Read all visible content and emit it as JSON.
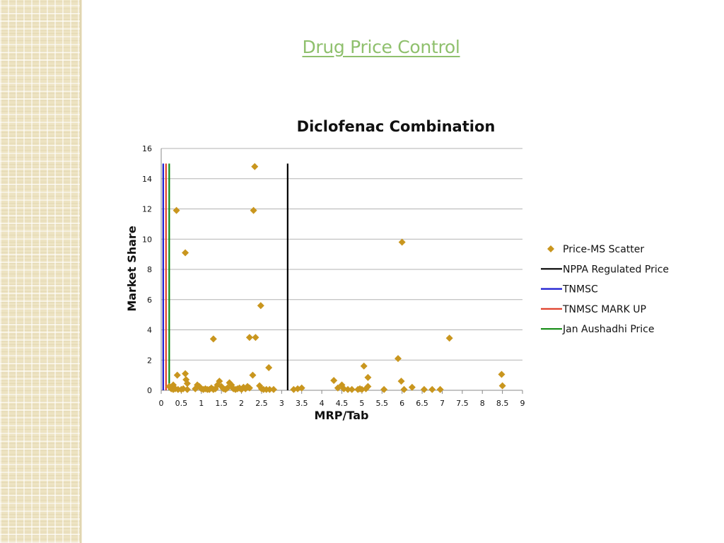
{
  "slide": {
    "title": "Drug Price Control"
  },
  "colors": {
    "scatter": "#c9961e",
    "nppa": "#000000",
    "tnmsc": "#1a1ad0",
    "tnmsc_markup": "#e0412c",
    "jan_aushadhi": "#118a11",
    "title": "#8fc06d"
  },
  "chart_data": {
    "type": "scatter",
    "title": "Diclofenac Combination",
    "xlabel": "MRP/Tab",
    "ylabel": "Market Share",
    "xlim": [
      0,
      9
    ],
    "ylim": [
      0,
      16
    ],
    "xticks": [
      0,
      0.5,
      1,
      1.5,
      2,
      2.5,
      3,
      3.5,
      4,
      4.5,
      5,
      5.5,
      6,
      6.5,
      7,
      7.5,
      8,
      8.5,
      9
    ],
    "xtick_labels": [
      "0",
      "0.5",
      "1",
      "1.5",
      "2",
      "2.5",
      "3",
      "3.5",
      "4",
      "4.5",
      "5",
      "5.5",
      "6",
      "6.5",
      "7",
      "7.5",
      "8",
      "8.5",
      "9"
    ],
    "yticks": [
      0,
      2,
      4,
      6,
      8,
      10,
      12,
      14,
      16
    ],
    "ytick_labels": [
      "0",
      "2",
      "4",
      "6",
      "8",
      "10",
      "12",
      "14",
      "16"
    ],
    "grid": true,
    "legend_position": "right",
    "series": [
      {
        "name": "Price-MS Scatter",
        "kind": "scatter",
        "color": "#c9961e",
        "points": [
          [
            0.38,
            11.9
          ],
          [
            0.6,
            9.1
          ],
          [
            2.33,
            14.8
          ],
          [
            2.3,
            11.9
          ],
          [
            2.48,
            5.6
          ],
          [
            2.2,
            3.5
          ],
          [
            2.35,
            3.5
          ],
          [
            1.3,
            3.4
          ],
          [
            2.68,
            1.5
          ],
          [
            2.28,
            1.0
          ],
          [
            0.4,
            1.0
          ],
          [
            0.6,
            1.1
          ],
          [
            0.62,
            0.7
          ],
          [
            0.65,
            0.45
          ],
          [
            0.3,
            0.35
          ],
          [
            0.2,
            0.25
          ],
          [
            0.25,
            0.1
          ],
          [
            0.3,
            0.05
          ],
          [
            0.35,
            0.1
          ],
          [
            0.42,
            0.05
          ],
          [
            0.5,
            0.05
          ],
          [
            0.55,
            0.1
          ],
          [
            0.65,
            0.05
          ],
          [
            0.85,
            0.1
          ],
          [
            0.9,
            0.35
          ],
          [
            0.95,
            0.25
          ],
          [
            1.0,
            0.1
          ],
          [
            1.05,
            0.05
          ],
          [
            1.1,
            0.1
          ],
          [
            1.15,
            0.05
          ],
          [
            1.2,
            0.05
          ],
          [
            1.25,
            0.15
          ],
          [
            1.3,
            0.05
          ],
          [
            1.35,
            0.1
          ],
          [
            1.4,
            0.35
          ],
          [
            1.45,
            0.6
          ],
          [
            1.5,
            0.25
          ],
          [
            1.55,
            0.1
          ],
          [
            1.6,
            0.05
          ],
          [
            1.65,
            0.15
          ],
          [
            1.7,
            0.5
          ],
          [
            1.75,
            0.35
          ],
          [
            1.8,
            0.1
          ],
          [
            1.85,
            0.05
          ],
          [
            1.9,
            0.1
          ],
          [
            1.95,
            0.15
          ],
          [
            2.0,
            0.05
          ],
          [
            2.05,
            0.2
          ],
          [
            2.1,
            0.1
          ],
          [
            2.15,
            0.25
          ],
          [
            2.2,
            0.15
          ],
          [
            2.45,
            0.3
          ],
          [
            2.5,
            0.1
          ],
          [
            2.55,
            0.05
          ],
          [
            2.62,
            0.05
          ],
          [
            2.7,
            0.05
          ],
          [
            2.8,
            0.05
          ],
          [
            3.3,
            0.05
          ],
          [
            3.4,
            0.1
          ],
          [
            3.5,
            0.15
          ],
          [
            4.3,
            0.65
          ],
          [
            4.4,
            0.15
          ],
          [
            4.5,
            0.35
          ],
          [
            4.55,
            0.1
          ],
          [
            4.65,
            0.05
          ],
          [
            4.75,
            0.05
          ],
          [
            4.9,
            0.05
          ],
          [
            4.95,
            0.1
          ],
          [
            5.0,
            0.05
          ],
          [
            5.05,
            1.6
          ],
          [
            5.1,
            0.1
          ],
          [
            5.15,
            0.85
          ],
          [
            5.15,
            0.25
          ],
          [
            5.55,
            0.05
          ],
          [
            5.9,
            2.1
          ],
          [
            6.0,
            9.8
          ],
          [
            5.98,
            0.6
          ],
          [
            6.05,
            0.05
          ],
          [
            6.25,
            0.2
          ],
          [
            6.55,
            0.05
          ],
          [
            6.75,
            0.05
          ],
          [
            6.95,
            0.05
          ],
          [
            7.18,
            3.45
          ],
          [
            8.48,
            1.05
          ],
          [
            8.5,
            0.3
          ]
        ]
      },
      {
        "name": "NPPA Regulated Price",
        "kind": "vline",
        "x": 3.15,
        "y_range": [
          0,
          15
        ],
        "color": "#000000"
      },
      {
        "name": "TNMSC",
        "kind": "vline",
        "x": 0.05,
        "y_range": [
          0,
          15
        ],
        "color": "#1a1ad0"
      },
      {
        "name": "TNMSC MARK UP",
        "kind": "vline",
        "x": 0.12,
        "y_range": [
          0,
          15
        ],
        "color": "#e0412c"
      },
      {
        "name": "Jan Aushadhi Price",
        "kind": "vline",
        "x": 0.2,
        "y_range": [
          0,
          15
        ],
        "color": "#118a11"
      }
    ]
  }
}
